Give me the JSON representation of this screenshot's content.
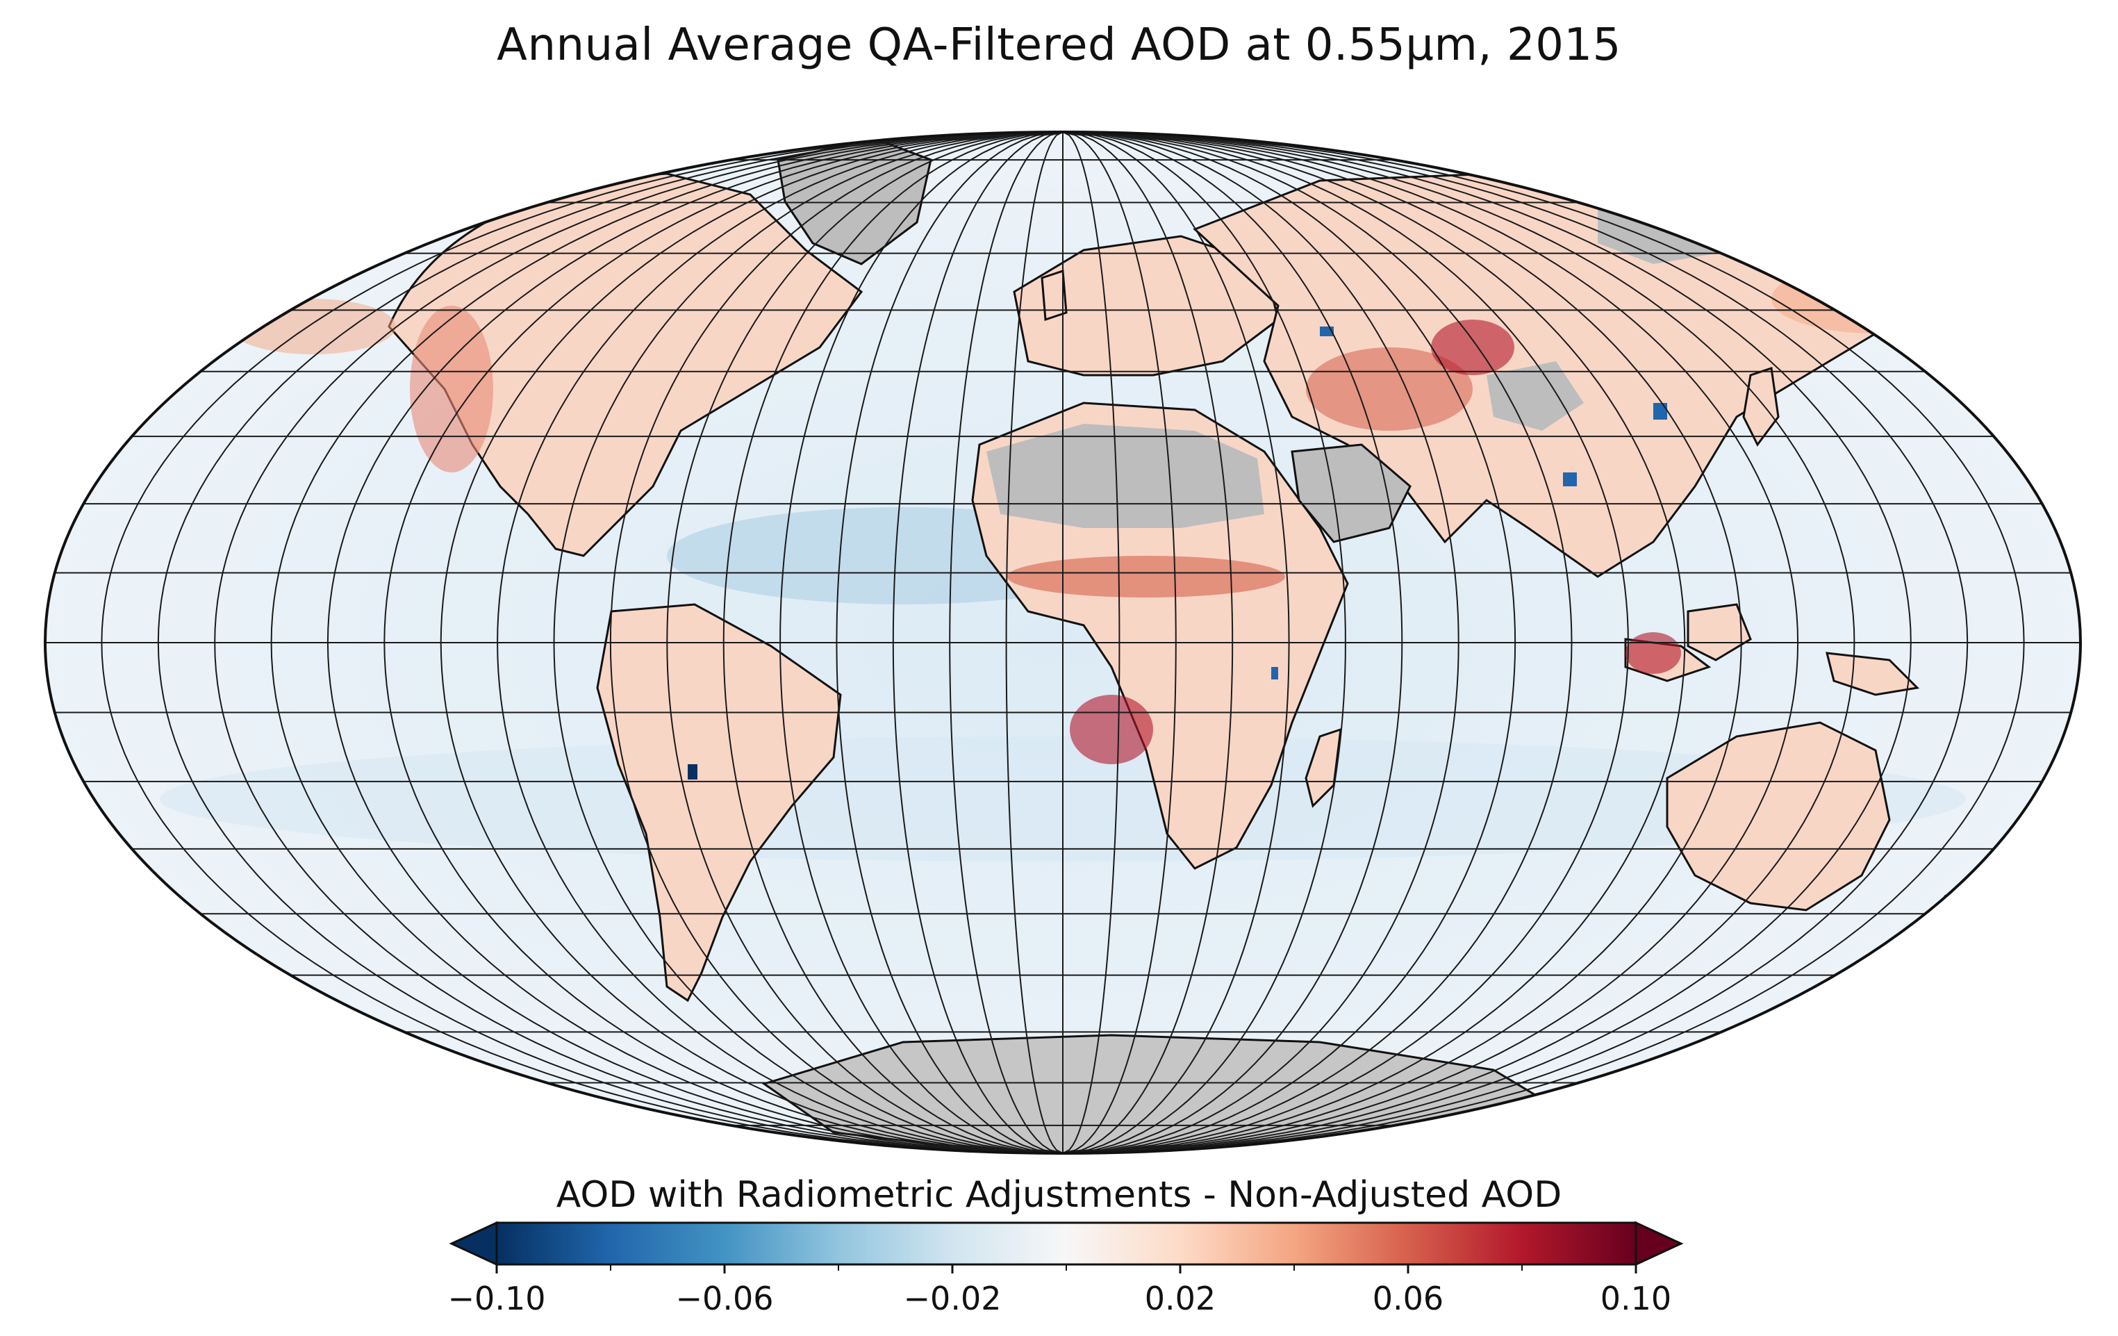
{
  "title": "Annual Average QA-Filtered AOD at 0.55μm, 2015",
  "map": {
    "projection": "Mollweide",
    "graticule": {
      "meridian_step_deg": 10,
      "parallel_step_deg": 10
    },
    "no_data_color": "#bdbdbd",
    "ocean_baseline_color": "#e9f2f8",
    "colormap": "RdBu_r"
  },
  "colorbar": {
    "label": "AOD with Radiometric Adjustments - Non-Adjusted AOD",
    "vmin": -0.1,
    "vmax": 0.1,
    "extend": "both",
    "tick_labels": [
      "−0.10",
      "−0.06",
      "−0.02",
      "0.02",
      "0.06",
      "0.10"
    ],
    "tick_values": [
      -0.1,
      -0.06,
      -0.02,
      0.02,
      0.06,
      0.1
    ],
    "minor_tick_values": [
      -0.08,
      -0.04,
      0.0,
      0.04,
      0.08
    ],
    "colors": [
      "#053061",
      "#2166ac",
      "#4393c3",
      "#92c5de",
      "#d1e5f0",
      "#f7f7f7",
      "#fddbc7",
      "#f4a582",
      "#d6604d",
      "#b2182b",
      "#67001f"
    ]
  }
}
